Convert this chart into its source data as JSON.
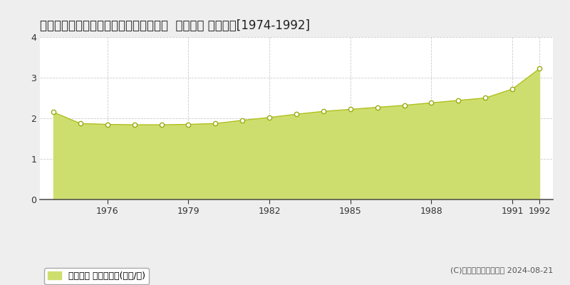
{
  "title": "栃木県小山市大字生良字上宿４０５番１  地価公示 地価推移[1974-1992]",
  "years": [
    1974,
    1975,
    1976,
    1977,
    1978,
    1979,
    1980,
    1981,
    1982,
    1983,
    1984,
    1985,
    1986,
    1987,
    1988,
    1989,
    1990,
    1991,
    1992
  ],
  "values": [
    2.15,
    1.87,
    1.85,
    1.84,
    1.84,
    1.85,
    1.87,
    1.95,
    2.02,
    2.1,
    2.17,
    2.22,
    2.27,
    2.32,
    2.38,
    2.44,
    2.5,
    2.72,
    3.22
  ],
  "fill_color": "#cede6e",
  "line_color": "#b0c020",
  "marker_face_color": "#ffffff",
  "marker_edge_color": "#9aaa10",
  "grid_color": "#cccccc",
  "bg_color": "#eeeeee",
  "plot_bg_color": "#ffffff",
  "ylim": [
    0,
    4
  ],
  "yticks": [
    0,
    1,
    2,
    3,
    4
  ],
  "xticks": [
    1976,
    1979,
    1982,
    1985,
    1988,
    1991,
    1992
  ],
  "legend_label": "地価公示 平均坪単価(万円/坪)",
  "copyright_text": "(C)土地価格ドットコム 2024-08-21",
  "title_fontsize": 12,
  "tick_fontsize": 9,
  "legend_fontsize": 9,
  "copyright_fontsize": 8
}
